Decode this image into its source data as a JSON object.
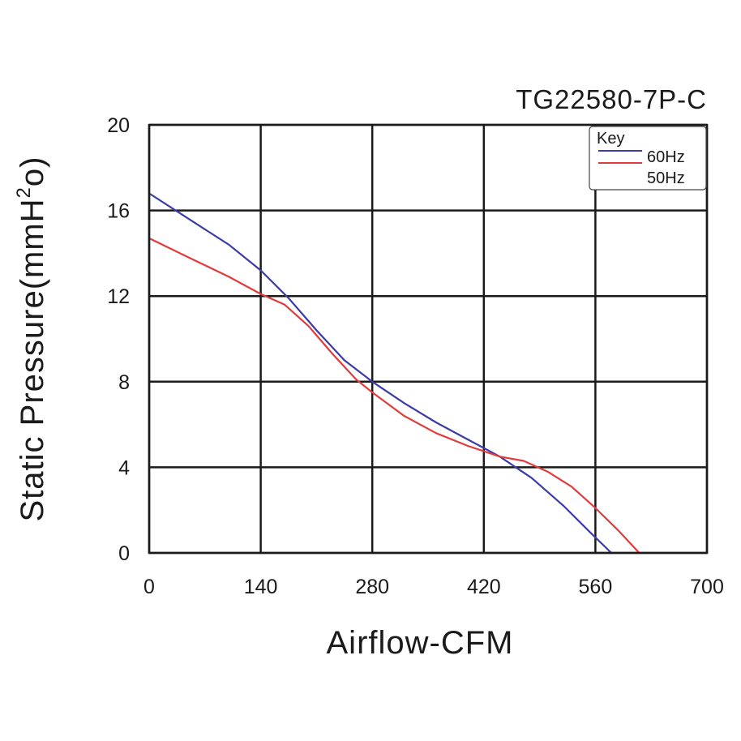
{
  "chart_data": {
    "type": "line",
    "title": "TG22580-7P-C",
    "xlabel": "Airflow-CFM",
    "ylabel_base": "Static Pressure(mmH",
    "ylabel_sup": "2",
    "ylabel_end": "o)",
    "xlim": [
      0,
      700
    ],
    "ylim": [
      0,
      20
    ],
    "xticks": [
      0,
      140,
      280,
      420,
      560,
      700
    ],
    "yticks": [
      0,
      4,
      8,
      12,
      16,
      20
    ],
    "grid": true,
    "legend": {
      "title": "Key",
      "placement": "top-right"
    },
    "series": [
      {
        "name": "60Hz",
        "color": "#3b3ba8",
        "points": [
          [
            0,
            16.8
          ],
          [
            50,
            15.6
          ],
          [
            100,
            14.4
          ],
          [
            140,
            13.2
          ],
          [
            175,
            11.9
          ],
          [
            210,
            10.4
          ],
          [
            245,
            9.0
          ],
          [
            280,
            8.0
          ],
          [
            320,
            7.0
          ],
          [
            360,
            6.1
          ],
          [
            400,
            5.3
          ],
          [
            440,
            4.5
          ],
          [
            480,
            3.5
          ],
          [
            520,
            2.2
          ],
          [
            555,
            0.9
          ],
          [
            580,
            0
          ]
        ]
      },
      {
        "name": "50Hz",
        "color": "#e03c3c",
        "points": [
          [
            0,
            14.7
          ],
          [
            50,
            13.8
          ],
          [
            100,
            12.9
          ],
          [
            140,
            12.1
          ],
          [
            170,
            11.6
          ],
          [
            200,
            10.6
          ],
          [
            230,
            9.3
          ],
          [
            260,
            8.1
          ],
          [
            280,
            7.5
          ],
          [
            320,
            6.4
          ],
          [
            360,
            5.6
          ],
          [
            400,
            5.0
          ],
          [
            440,
            4.5
          ],
          [
            470,
            4.3
          ],
          [
            500,
            3.8
          ],
          [
            530,
            3.1
          ],
          [
            560,
            2.1
          ],
          [
            590,
            1.0
          ],
          [
            615,
            0
          ]
        ]
      }
    ]
  }
}
